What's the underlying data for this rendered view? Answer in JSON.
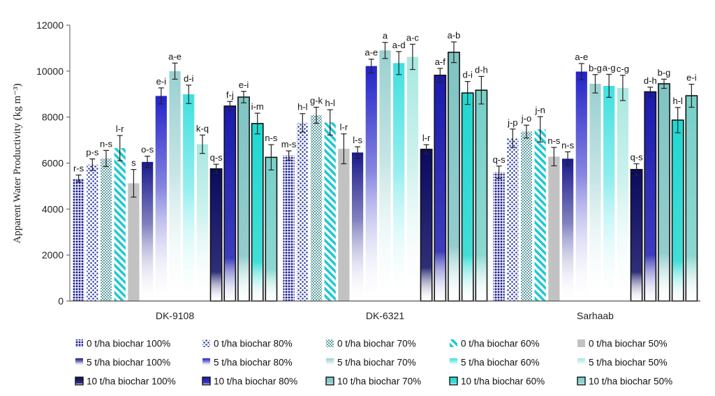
{
  "chart_data": {
    "type": "bar",
    "title": "",
    "xlabel": "",
    "ylabel": "Apparent Water Productivity (kg m⁻³)",
    "ylim": [
      0,
      12000
    ],
    "yticks": [
      0,
      2000,
      4000,
      6000,
      8000,
      10000,
      12000
    ],
    "grid": false,
    "legend_position": "bottom",
    "categories": [
      "DK-9108",
      "DK-6321",
      "Sarhaab"
    ],
    "series": [
      {
        "name": "0 t/ha biochar 100%",
        "values": [
          5330,
          6330,
          5600
        ],
        "errors": [
          150,
          200,
          270
        ],
        "labels": [
          "r-s",
          "m-s",
          "q-s"
        ],
        "fill": "dots-dense",
        "color": "#1a1a8c"
      },
      {
        "name": "0 t/ha biochar 80%",
        "values": [
          5930,
          7750,
          7080
        ],
        "errors": [
          250,
          400,
          400
        ],
        "labels": [
          "p-s",
          "h-l",
          "j-p"
        ],
        "fill": "dots-sparse",
        "color": "#2a3aa8"
      },
      {
        "name": "0 t/ha biochar 70%",
        "values": [
          6200,
          8080,
          7370
        ],
        "errors": [
          350,
          350,
          280
        ],
        "labels": [
          "n-s",
          "g-k",
          "j-o"
        ],
        "fill": "checks",
        "color": "#5f9ea0"
      },
      {
        "name": "0 t/ha biochar 60%",
        "values": [
          6650,
          7770,
          7470
        ],
        "errors": [
          550,
          550,
          550
        ],
        "labels": [
          "l-r",
          "h-l",
          "j-n"
        ],
        "fill": "diag-stripes",
        "color": "#1ec8d0"
      },
      {
        "name": "0 t/ha biochar 50%",
        "values": [
          5120,
          6620,
          6280
        ],
        "errors": [
          600,
          650,
          400
        ],
        "labels": [
          "s",
          "l-r",
          "n-s"
        ],
        "fill": "solid",
        "color": "#c2c2c2"
      },
      {
        "name": "5 t/ha biochar 100%",
        "values": [
          6050,
          6460,
          6190
        ],
        "errors": [
          250,
          250,
          300
        ],
        "labels": [
          "o-s",
          "l-s",
          "n-s"
        ],
        "fill": "gradient",
        "color": "#1a1a8c"
      },
      {
        "name": "5 t/ha biochar 80%",
        "values": [
          8920,
          10220,
          9980
        ],
        "errors": [
          350,
          300,
          350
        ],
        "labels": [
          "e-i",
          "a-e",
          "a-e"
        ],
        "fill": "gradient",
        "color": "#2323c8"
      },
      {
        "name": "5 t/ha biochar 70%",
        "values": [
          10000,
          10900,
          9450
        ],
        "errors": [
          350,
          350,
          400
        ],
        "labels": [
          "a-e",
          "a",
          "b-g"
        ],
        "fill": "gradient",
        "color": "#9ad0d0"
      },
      {
        "name": "5 t/ha biochar 60%",
        "values": [
          8990,
          10350,
          9360
        ],
        "errors": [
          400,
          500,
          500
        ],
        "labels": [
          "d-i",
          "a-d",
          "a-g"
        ],
        "fill": "gradient",
        "color": "#3ee0e0"
      },
      {
        "name": "5 t/ha biochar 50%",
        "values": [
          6820,
          10620,
          9270
        ],
        "errors": [
          400,
          550,
          550
        ],
        "labels": [
          "k-q",
          "a-c",
          "c-g"
        ],
        "fill": "gradient",
        "color": "#a8e8e0"
      },
      {
        "name": "10 t/ha biochar 100%",
        "values": [
          5750,
          6600,
          5720
        ],
        "errors": [
          200,
          200,
          250
        ],
        "labels": [
          "q-s",
          "l-r",
          "q-s"
        ],
        "fill": "gradient-dark",
        "color": "#0a0a60"
      },
      {
        "name": "10 t/ha biochar 80%",
        "values": [
          8480,
          9820,
          9100
        ],
        "errors": [
          200,
          300,
          200
        ],
        "labels": [
          "f-j",
          "a-f",
          "d-h"
        ],
        "fill": "gradient-dark",
        "color": "#1a1ab0"
      },
      {
        "name": "10 t/ha biochar 70%",
        "values": [
          8870,
          10820,
          9450
        ],
        "errors": [
          250,
          450,
          200
        ],
        "labels": [
          "e-i",
          "a-b",
          "b-g"
        ],
        "fill": "gradient-dark",
        "color": "#80c4c4"
      },
      {
        "name": "10 t/ha biochar 60%",
        "values": [
          7720,
          9050,
          7870
        ],
        "errors": [
          450,
          500,
          550
        ],
        "labels": [
          "i-m",
          "d-i",
          "h-l"
        ],
        "fill": "gradient-dark",
        "color": "#20d8d0"
      },
      {
        "name": "10 t/ha biochar 50%",
        "values": [
          6250,
          9170,
          8930
        ],
        "errors": [
          550,
          600,
          500
        ],
        "labels": [
          "n-s",
          "d-h",
          "e-i"
        ],
        "fill": "gradient-dark",
        "color": "#78d0c8"
      }
    ]
  }
}
